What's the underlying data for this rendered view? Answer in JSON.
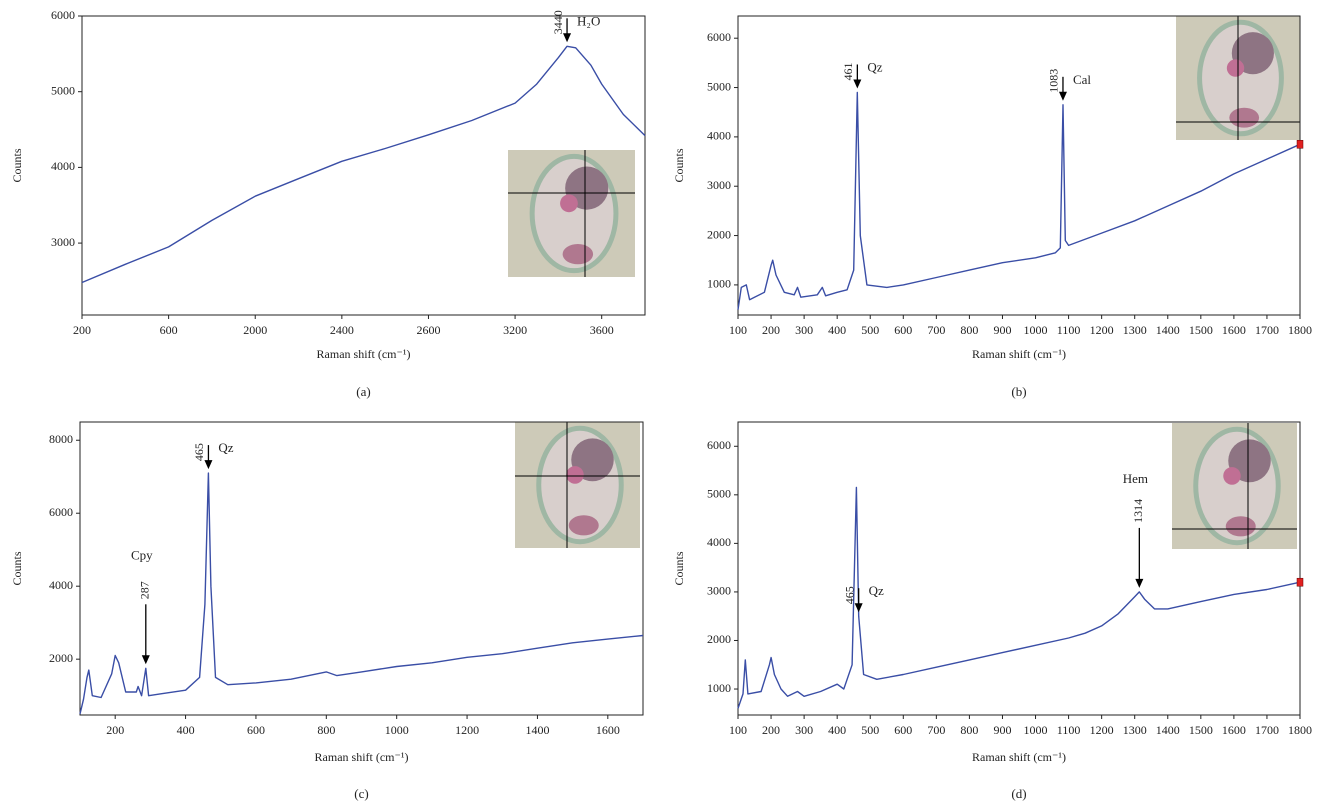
{
  "chart_data": [
    {
      "type": "line",
      "caption": "(a)",
      "xlabel": "Raman shift (cm⁻¹)",
      "ylabel": "Counts",
      "color": "#3a4ea6",
      "xscale": "tick-spaced",
      "xlim": [
        200,
        3800
      ],
      "xticks": [
        200,
        600,
        2000,
        2400,
        2600,
        3200,
        3600
      ],
      "ylim": [
        2050,
        6000
      ],
      "yticks": [
        3000,
        4000,
        5000,
        6000
      ],
      "x": [
        200,
        400,
        600,
        1300,
        2000,
        2200,
        2400,
        2500,
        2600,
        2900,
        3200,
        3300,
        3400,
        3440,
        3480,
        3550,
        3600,
        3700,
        3800
      ],
      "values": [
        2480,
        2720,
        2950,
        3300,
        3620,
        3850,
        4080,
        4250,
        4430,
        4620,
        4850,
        5100,
        5450,
        5600,
        5580,
        5350,
        5100,
        4700,
        4420
      ],
      "annotations": [
        {
          "x": 3440,
          "label": "H₂O",
          "placement": "side"
        }
      ]
    },
    {
      "type": "line",
      "caption": "(b)",
      "xlabel": "Raman shift (cm⁻¹)",
      "ylabel": "Counts",
      "color": "#3a4ea6",
      "xlim": [
        100,
        1800
      ],
      "xticks": [
        100,
        200,
        300,
        400,
        500,
        600,
        700,
        800,
        900,
        1000,
        1100,
        1200,
        1300,
        1400,
        1500,
        1600,
        1700,
        1800
      ],
      "ylim": [
        390,
        6450
      ],
      "yticks": [
        1000,
        2000,
        3000,
        4000,
        5000,
        6000
      ],
      "x": [
        100,
        110,
        125,
        135,
        150,
        180,
        200,
        205,
        215,
        240,
        270,
        280,
        290,
        340,
        355,
        365,
        400,
        430,
        450,
        461,
        470,
        490,
        550,
        600,
        700,
        800,
        900,
        1000,
        1060,
        1075,
        1083,
        1090,
        1100,
        1200,
        1300,
        1400,
        1500,
        1600,
        1700,
        1800
      ],
      "values": [
        500,
        950,
        1000,
        700,
        750,
        850,
        1400,
        1500,
        1200,
        850,
        800,
        950,
        750,
        800,
        950,
        780,
        850,
        900,
        1300,
        4900,
        2000,
        1000,
        950,
        1000,
        1150,
        1300,
        1450,
        1550,
        1650,
        1750,
        4650,
        1900,
        1800,
        2050,
        2300,
        2600,
        2900,
        3250,
        3550,
        3850
      ],
      "annotations": [
        {
          "x": 461,
          "label": "Qz",
          "placement": "side"
        },
        {
          "x": 1083,
          "label": "Cal",
          "placement": "side"
        }
      ]
    },
    {
      "type": "line",
      "caption": "(c)",
      "xlabel": "Raman shift (cm⁻¹)",
      "ylabel": "Counts",
      "color": "#3a4ea6",
      "xlim": [
        100,
        1700
      ],
      "xticks": [
        200,
        400,
        600,
        800,
        1000,
        1200,
        1400,
        1600
      ],
      "ylim": [
        470,
        8500
      ],
      "yticks": [
        2000,
        4000,
        6000,
        8000
      ],
      "x": [
        100,
        110,
        120,
        125,
        135,
        160,
        190,
        200,
        210,
        230,
        260,
        265,
        275,
        287,
        295,
        330,
        400,
        440,
        455,
        465,
        472,
        485,
        520,
        600,
        700,
        800,
        830,
        900,
        1000,
        1100,
        1200,
        1300,
        1400,
        1500,
        1600,
        1700
      ],
      "values": [
        500,
        900,
        1500,
        1700,
        1000,
        950,
        1600,
        2100,
        1900,
        1100,
        1100,
        1250,
        1000,
        1750,
        1000,
        1050,
        1150,
        1500,
        3500,
        7100,
        4000,
        1500,
        1300,
        1350,
        1450,
        1650,
        1550,
        1650,
        1800,
        1900,
        2050,
        2150,
        2300,
        2450,
        2550,
        2650
      ],
      "annotations": [
        {
          "x": 465,
          "label": "Qz",
          "placement": "side"
        },
        {
          "x": 287,
          "label": "Cpy",
          "placement": "above"
        }
      ]
    },
    {
      "type": "line",
      "caption": "(d)",
      "xlabel": "Raman shift (cm⁻¹)",
      "ylabel": "Counts",
      "color": "#3a4ea6",
      "xlim": [
        100,
        1800
      ],
      "xticks": [
        100,
        200,
        300,
        400,
        500,
        600,
        700,
        800,
        900,
        1000,
        1100,
        1200,
        1300,
        1400,
        1500,
        1600,
        1700,
        1800
      ],
      "ylim": [
        465,
        6500
      ],
      "yticks": [
        1000,
        2000,
        3000,
        4000,
        5000,
        6000
      ],
      "x": [
        100,
        115,
        122,
        130,
        170,
        195,
        200,
        210,
        230,
        250,
        280,
        300,
        350,
        400,
        420,
        445,
        458,
        465,
        480,
        520,
        600,
        700,
        800,
        900,
        1000,
        1100,
        1150,
        1200,
        1250,
        1300,
        1314,
        1330,
        1360,
        1400,
        1500,
        1600,
        1700,
        1800
      ],
      "values": [
        600,
        900,
        1600,
        900,
        950,
        1500,
        1650,
        1300,
        1000,
        850,
        950,
        850,
        950,
        1100,
        1000,
        1500,
        5150,
        2500,
        1300,
        1200,
        1300,
        1450,
        1600,
        1750,
        1900,
        2050,
        2150,
        2300,
        2550,
        2900,
        3000,
        2850,
        2650,
        2650,
        2800,
        2950,
        3050,
        3200
      ],
      "annotations": [
        {
          "x": 465,
          "label": "Qz",
          "placement": "side"
        },
        {
          "x": 1314,
          "label": "Hem",
          "placement": "above"
        }
      ]
    }
  ]
}
